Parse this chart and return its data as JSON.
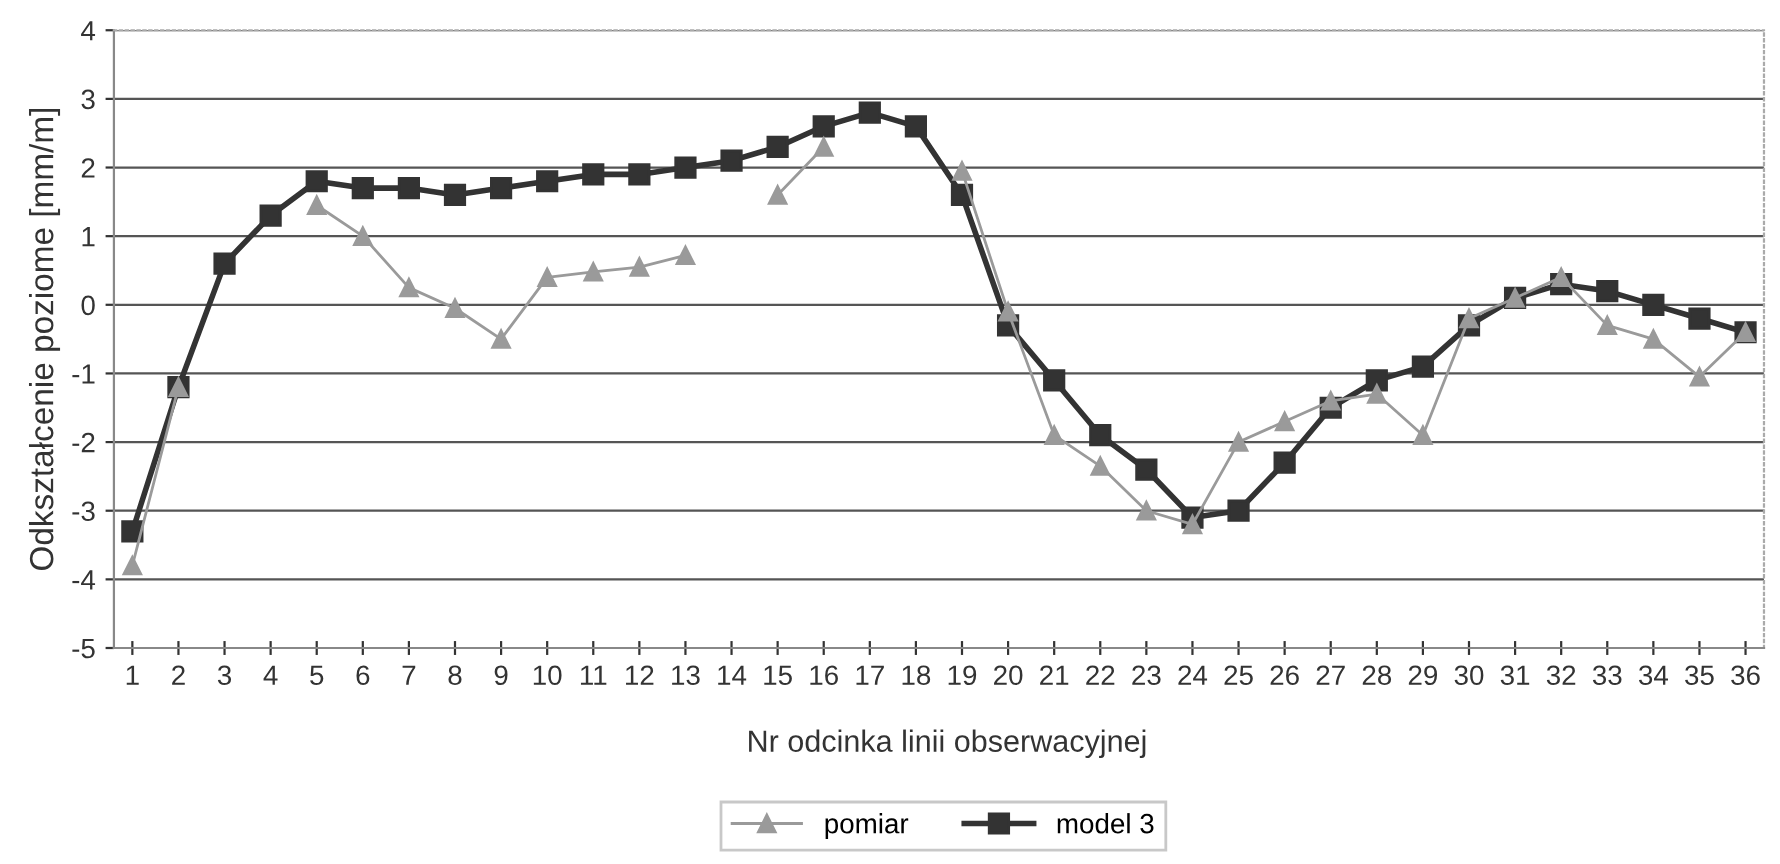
{
  "chart_data": {
    "type": "line",
    "xlabel": "Nr odcinka linii obserwacyjnej",
    "ylabel": "Odkształcenie poziome [mm/m]",
    "categories": [
      "1",
      "2",
      "3",
      "4",
      "5",
      "6",
      "7",
      "8",
      "9",
      "10",
      "11",
      "12",
      "13",
      "14",
      "15",
      "16",
      "17",
      "18",
      "19",
      "20",
      "21",
      "22",
      "23",
      "24",
      "25",
      "26",
      "27",
      "28",
      "29",
      "30",
      "31",
      "32",
      "33",
      "34",
      "35",
      "36"
    ],
    "series": [
      {
        "name": "pomiar",
        "color": "#9a9a9a",
        "marker": "triangle",
        "values": [
          -3.8,
          -1.2,
          null,
          null,
          1.45,
          1.0,
          0.25,
          -0.05,
          -0.5,
          0.4,
          0.48,
          0.55,
          0.72,
          null,
          1.6,
          2.3,
          null,
          null,
          1.95,
          -0.1,
          -1.9,
          -2.35,
          -3.0,
          -3.2,
          -2.0,
          -1.7,
          -1.4,
          -1.3,
          -1.9,
          -0.2,
          0.1,
          0.4,
          -0.3,
          -0.5,
          -1.05,
          -0.4
        ]
      },
      {
        "name": "model 3",
        "color": "#333333",
        "marker": "square",
        "values": [
          -3.3,
          -1.2,
          0.6,
          1.3,
          1.8,
          1.7,
          1.7,
          1.6,
          1.7,
          1.8,
          1.9,
          1.9,
          2.0,
          2.1,
          2.3,
          2.6,
          2.8,
          2.6,
          1.6,
          -0.3,
          -1.1,
          -1.9,
          -2.4,
          -3.1,
          -3.0,
          -2.3,
          -1.5,
          -1.1,
          -0.9,
          -0.3,
          0.1,
          0.3,
          0.2,
          0.0,
          -0.2,
          -0.4
        ]
      }
    ],
    "ylim": [
      -5,
      4
    ],
    "yticks": [
      -5,
      -4,
      -3,
      -2,
      -1,
      0,
      1,
      2,
      3,
      4
    ],
    "grid": "y",
    "legend": "bottom",
    "line_style": "solid"
  }
}
